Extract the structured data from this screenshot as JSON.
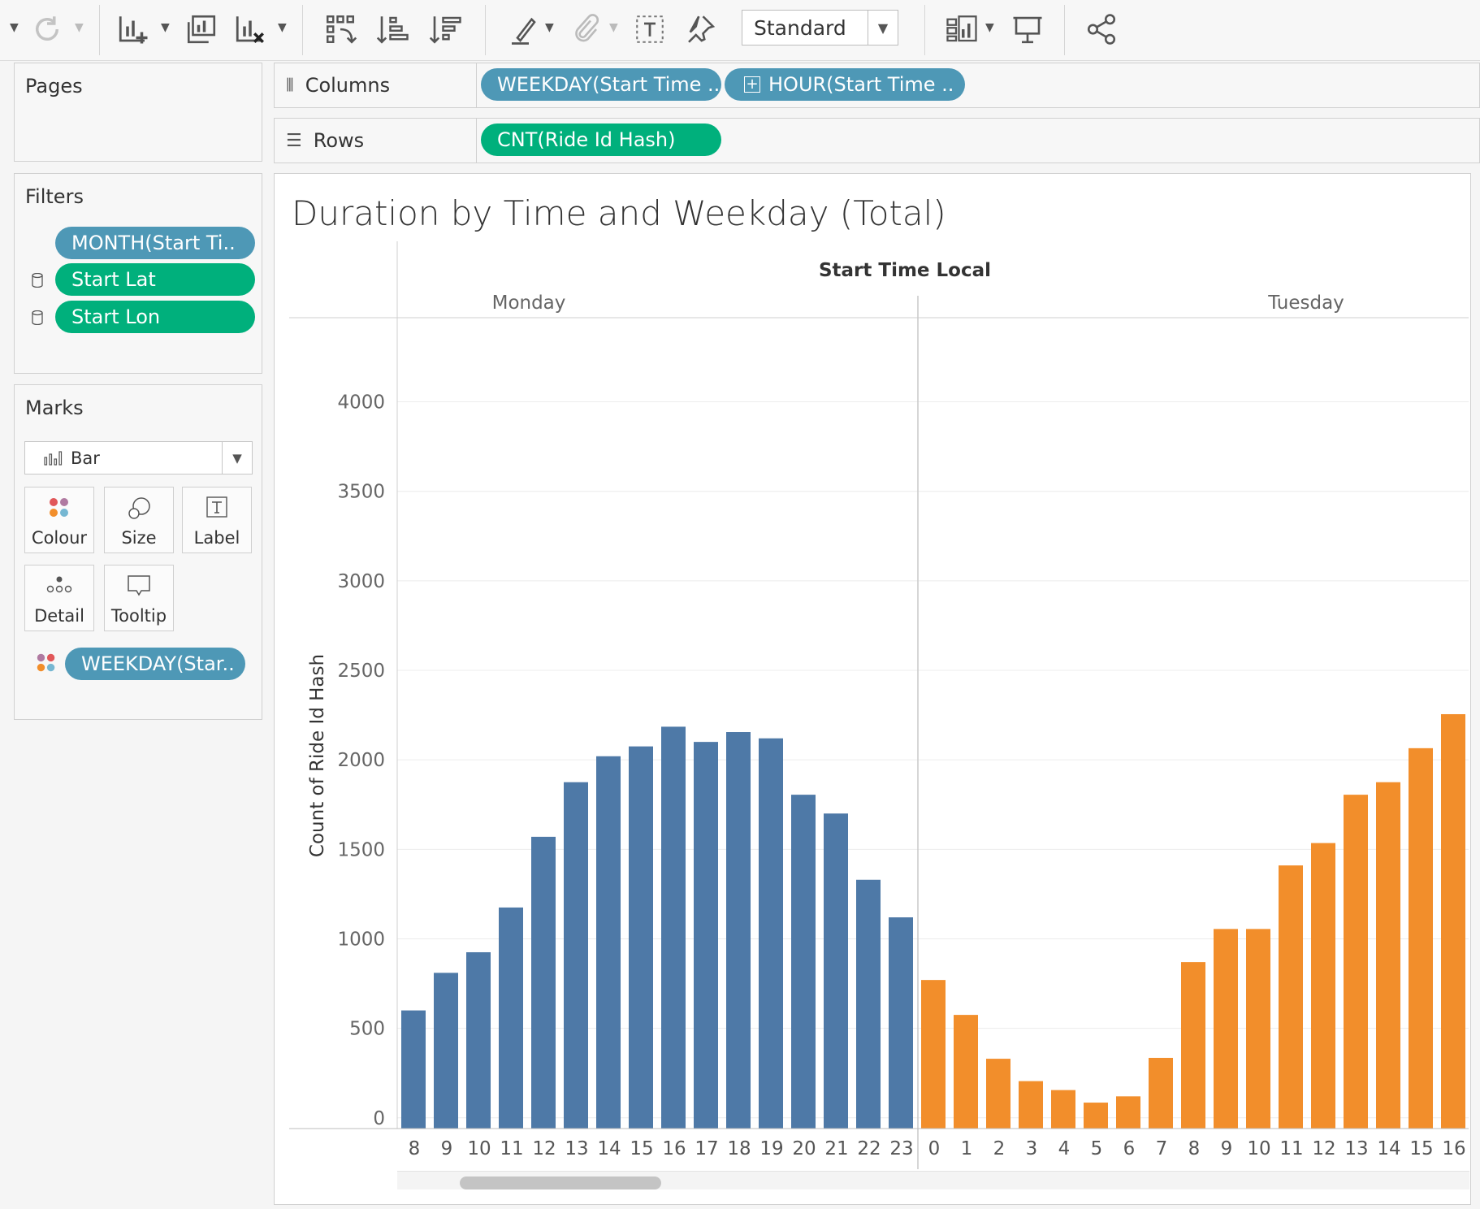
{
  "toolbar": {
    "fit_select": "Standard",
    "icons": [
      "caret-down-icon",
      "refresh-icon",
      "caret-down-icon",
      "new-worksheet-icon",
      "caret-down-icon",
      "duplicate-sheet-icon",
      "clear-sheet-icon",
      "caret-down-icon",
      "swap-icon",
      "sort-asc-icon",
      "sort-desc-icon",
      "highlight-icon",
      "caret-down-icon",
      "group-icon",
      "caret-down-icon",
      "label-icon",
      "pin-icon",
      "show-me-icon",
      "caret-down-icon",
      "presentation-icon",
      "share-icon"
    ]
  },
  "pages": {
    "title": "Pages"
  },
  "filters": {
    "title": "Filters",
    "items": [
      {
        "label": "MONTH(Start Ti..",
        "color": "#4e98b6"
      },
      {
        "label": "Start Lat",
        "color": "#00b07c"
      },
      {
        "label": "Start Lon",
        "color": "#00b07c"
      }
    ]
  },
  "marks": {
    "title": "Marks",
    "type": "Bar",
    "buttons": {
      "colour": "Colour",
      "size": "Size",
      "label": "Label",
      "detail": "Detail",
      "tooltip": "Tooltip"
    },
    "colour_pill": "WEEKDAY(Star.."
  },
  "shelves": {
    "columns": {
      "name": "Columns",
      "pills": [
        "WEEKDAY(Start Time ..",
        "HOUR(Start Time .."
      ]
    },
    "rows": {
      "name": "Rows",
      "pills": [
        "CNT(Ride Id Hash)"
      ]
    }
  },
  "chart": {
    "title": "Duration by Time and Weekday (Total)",
    "header": "Start Time Local",
    "scroll_position": 0.1
  },
  "chart_data": {
    "type": "bar",
    "ylabel": "Count of Ride Id Hash",
    "ylim": [
      -60,
      4470
    ],
    "yticks": [
      0,
      500,
      1000,
      1500,
      2000,
      2500,
      3000,
      3500,
      4000
    ],
    "grid": true,
    "panes": [
      {
        "name": "Monday",
        "color": "#4e79a7",
        "categories": [
          "8",
          "9",
          "10",
          "11",
          "12",
          "13",
          "14",
          "15",
          "16",
          "17",
          "18",
          "19",
          "20",
          "21",
          "22",
          "23"
        ],
        "values": [
          600,
          810,
          925,
          1175,
          1570,
          1875,
          2020,
          2075,
          2185,
          2100,
          2155,
          2120,
          1805,
          1700,
          1330,
          1120
        ]
      },
      {
        "name": "Tuesday",
        "color": "#f28e2b",
        "categories": [
          "0",
          "1",
          "2",
          "3",
          "4",
          "5",
          "6",
          "7",
          "8",
          "9",
          "10",
          "11",
          "12",
          "13",
          "14",
          "15",
          "16"
        ],
        "values": [
          770,
          575,
          330,
          205,
          155,
          85,
          120,
          335,
          870,
          1055,
          1055,
          1410,
          1535,
          1805,
          1875,
          2065,
          2255
        ]
      }
    ]
  }
}
